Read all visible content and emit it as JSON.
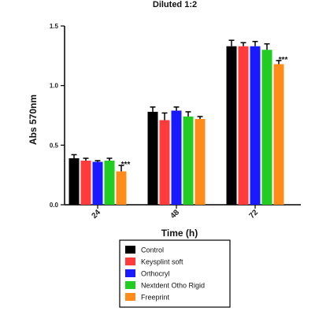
{
  "chart_data": {
    "type": "bar",
    "title": "Diluted 1:2",
    "xlabel": "Time (h)",
    "ylabel": "Abs 570nm",
    "categories": [
      "24",
      "48",
      "72"
    ],
    "ylim": [
      0,
      1.5
    ],
    "yticks": [
      0.0,
      0.5,
      1.0,
      1.5
    ],
    "ytick_labels": [
      "0.0",
      "0.5",
      "1.0",
      "1.5"
    ],
    "grid": false,
    "legend_position": "bottom",
    "series": [
      {
        "name": "Control",
        "color": "#000000",
        "values": [
          0.39,
          0.78,
          1.33
        ],
        "errors": [
          0.03,
          0.04,
          0.05
        ]
      },
      {
        "name": "Keysplint soft",
        "color": "#ff3b3b",
        "values": [
          0.37,
          0.71,
          1.33
        ],
        "errors": [
          0.02,
          0.06,
          0.03
        ]
      },
      {
        "name": "Orthocryl",
        "color": "#1a1aff",
        "values": [
          0.36,
          0.79,
          1.33
        ],
        "errors": [
          0.01,
          0.03,
          0.04
        ]
      },
      {
        "name": "Nextdent Otho Rigid",
        "color": "#22cc22",
        "values": [
          0.37,
          0.74,
          1.3
        ],
        "errors": [
          0.02,
          0.04,
          0.05
        ]
      },
      {
        "name": "Freeprint",
        "color": "#ff8c1a",
        "values": [
          0.28,
          0.72,
          1.18
        ],
        "errors": [
          0.05,
          0.02,
          0.03
        ]
      }
    ],
    "annotations": [
      {
        "text": "***",
        "category": "24",
        "series": "Freeprint"
      },
      {
        "text": "***",
        "category": "72",
        "series": "Freeprint"
      }
    ]
  }
}
